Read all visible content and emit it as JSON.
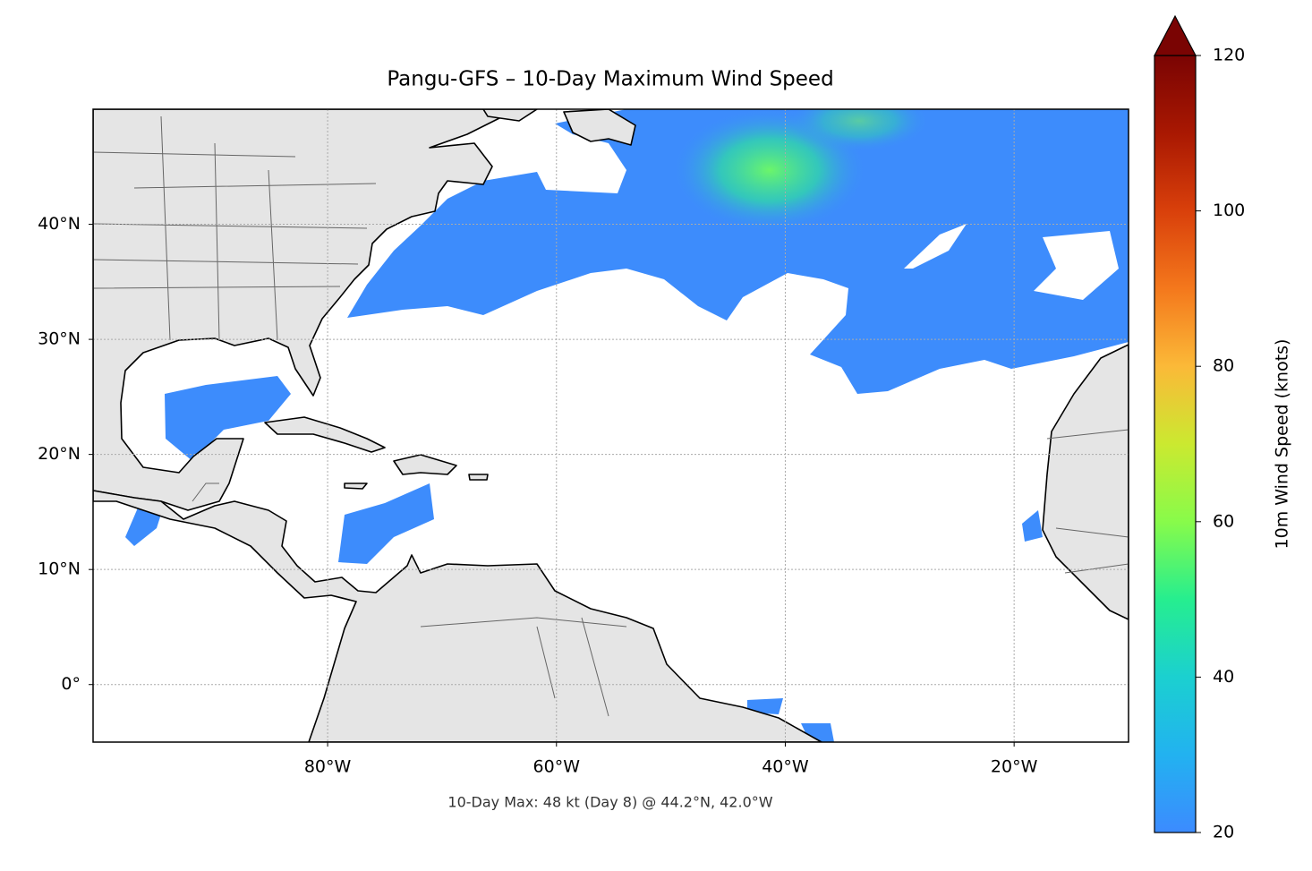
{
  "chart_data": {
    "type": "map",
    "title": "Pangu-GFS – 10-Day Maximum Wind Speed",
    "annotation": "10-Day Max: 48 kt (Day 8) @ 44.2°N, 42.0°W",
    "xlim": [
      -100.5,
      -10
    ],
    "ylim": [
      -5,
      50
    ],
    "xticks": [
      {
        "value": -80,
        "label": "80°W"
      },
      {
        "value": -60,
        "label": "60°W"
      },
      {
        "value": -40,
        "label": "40°W"
      },
      {
        "value": -20,
        "label": "20°W"
      }
    ],
    "yticks": [
      {
        "value": 0,
        "label": "0°"
      },
      {
        "value": 10,
        "label": "10°N"
      },
      {
        "value": 20,
        "label": "20°N"
      },
      {
        "value": 30,
        "label": "30°N"
      },
      {
        "value": 40,
        "label": "40°N"
      }
    ],
    "grid": true,
    "colorbar": {
      "label": "10m Wind Speed (knots)",
      "lim": [
        20,
        120
      ],
      "ticks": [
        20,
        40,
        60,
        80,
        100,
        120
      ]
    }
  }
}
